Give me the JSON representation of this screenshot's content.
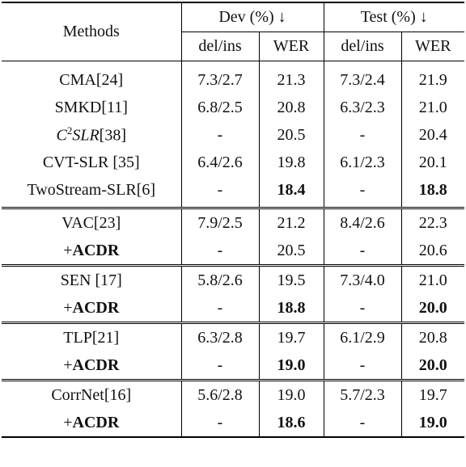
{
  "header": {
    "methods": "Methods",
    "dev": "Dev (%) ↓",
    "test": "Test (%) ↓",
    "del_ins": "del/ins",
    "wer": "WER"
  },
  "acdr_prefix": "+",
  "acdr": "ACDR",
  "groups": [
    {
      "rows": [
        {
          "method": "CMA[24]",
          "dev_del": "7.3/2.7",
          "dev_wer": "21.3",
          "test_del": "7.3/2.4",
          "test_wer": "21.9"
        },
        {
          "method": "SMKD[11]",
          "dev_del": "6.8/2.5",
          "dev_wer": "20.8",
          "test_del": "6.3/2.3",
          "test_wer": "21.0"
        },
        {
          "method_c": "C",
          "method_sup": "2",
          "method_slr": "SLR",
          "method_ref": "[38]",
          "dev_del": "-",
          "dev_wer": "20.5",
          "test_del": "-",
          "test_wer": "20.4"
        },
        {
          "method": "CVT-SLR [35]",
          "dev_del": "6.4/2.6",
          "dev_wer": "19.8",
          "test_del": "6.1/2.3",
          "test_wer": "20.1"
        },
        {
          "method": "TwoStream-SLR[6]",
          "dev_del": "-",
          "dev_wer": "18.4",
          "test_del": "-",
          "test_wer": "18.8"
        }
      ]
    },
    {
      "rows": [
        {
          "method": "VAC[23]",
          "dev_del": "7.9/2.5",
          "dev_wer": "21.2",
          "test_del": "8.4/2.6",
          "test_wer": "22.3"
        },
        {
          "dev_del": "-",
          "dev_wer": "20.5",
          "test_del": "-",
          "test_wer": "20.6"
        }
      ]
    },
    {
      "rows": [
        {
          "method": "SEN [17]",
          "dev_del": "5.8/2.6",
          "dev_wer": "19.5",
          "test_del": "7.3/4.0",
          "test_wer": "21.0"
        },
        {
          "dev_del": "-",
          "dev_wer": "18.8",
          "test_del": "-",
          "test_wer": "20.0"
        }
      ]
    },
    {
      "rows": [
        {
          "method": "TLP[21]",
          "dev_del": "6.3/2.8",
          "dev_wer": "19.7",
          "test_del": "6.1/2.9",
          "test_wer": "20.8"
        },
        {
          "dev_del": "-",
          "dev_wer": "19.0",
          "test_del": "-",
          "test_wer": "20.0"
        }
      ]
    },
    {
      "rows": [
        {
          "method": "CorrNet[16]",
          "dev_del": "5.6/2.8",
          "dev_wer": "19.0",
          "test_del": "5.7/2.3",
          "test_wer": "19.7"
        },
        {
          "dev_del": "-",
          "dev_wer": "18.6",
          "test_del": "-",
          "test_wer": "19.0"
        }
      ]
    }
  ]
}
